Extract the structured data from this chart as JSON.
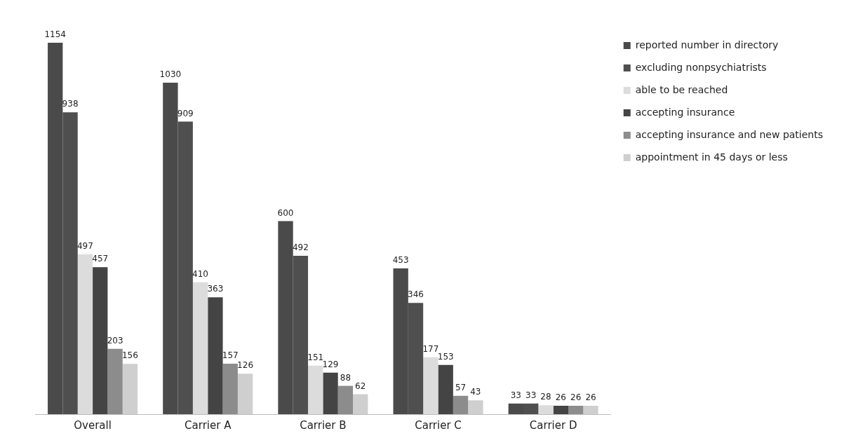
{
  "chart_data": {
    "type": "bar",
    "categories": [
      "Overall",
      "Carrier A",
      "Carrier B",
      "Carrier C",
      "Carrier D"
    ],
    "series": [
      {
        "name": "reported number in directory",
        "color": "#4a4a4a",
        "values": [
          1154,
          1030,
          600,
          453,
          33
        ]
      },
      {
        "name": "excluding nonpsychiatrists",
        "color": "#4f4f4f",
        "values": [
          938,
          909,
          492,
          346,
          33
        ]
      },
      {
        "name": "able to be reached",
        "color": "#dcdcdc",
        "values": [
          497,
          410,
          151,
          177,
          28
        ]
      },
      {
        "name": "accepting insurance",
        "color": "#444444",
        "values": [
          457,
          363,
          129,
          153,
          26
        ]
      },
      {
        "name": "accepting insurance and new patients",
        "color": "#8c8c8c",
        "values": [
          203,
          157,
          88,
          57,
          26
        ]
      },
      {
        "name": "appointment in 45 days or less",
        "color": "#cfcfcf",
        "values": [
          156,
          126,
          62,
          43,
          26
        ]
      }
    ],
    "data_labels": true,
    "legend": "top right",
    "grid": false
  }
}
